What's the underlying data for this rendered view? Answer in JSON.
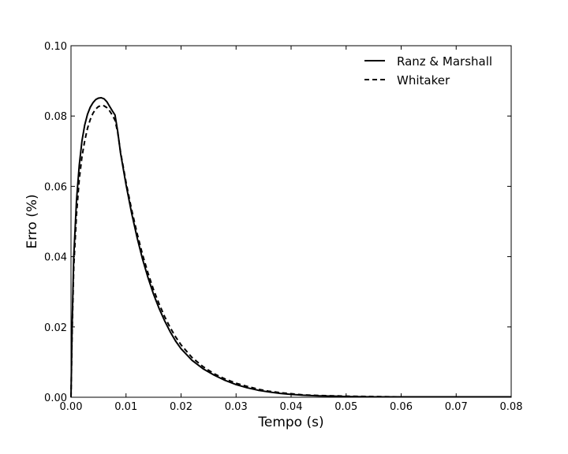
{
  "chart_data": {
    "type": "line",
    "title": "",
    "xlabel": "Tempo (s)",
    "ylabel": "Erro (%)",
    "xlim": [
      0.0,
      0.08
    ],
    "ylim": [
      0.0,
      0.1
    ],
    "xticks": [
      "0.00",
      "0.01",
      "0.02",
      "0.03",
      "0.04",
      "0.05",
      "0.06",
      "0.07",
      "0.08"
    ],
    "yticks": [
      "0.00",
      "0.02",
      "0.04",
      "0.06",
      "0.08",
      "0.10"
    ],
    "grid": false,
    "legend_position": "top-right",
    "series": [
      {
        "name": "Ranz & Marshall",
        "style": "solid",
        "color": "#000000",
        "x": [
          0.0,
          0.0002,
          0.0005,
          0.001,
          0.0015,
          0.002,
          0.0025,
          0.003,
          0.0035,
          0.004,
          0.0045,
          0.005,
          0.0055,
          0.006,
          0.0065,
          0.007,
          0.0075,
          0.008,
          0.0085,
          0.009,
          0.01,
          0.011,
          0.012,
          0.013,
          0.014,
          0.015,
          0.016,
          0.017,
          0.018,
          0.019,
          0.02,
          0.022,
          0.024,
          0.026,
          0.028,
          0.03,
          0.032,
          0.034,
          0.036,
          0.038,
          0.04,
          0.042,
          0.045,
          0.048,
          0.05,
          0.055,
          0.06,
          0.065,
          0.07,
          0.075,
          0.08
        ],
        "y": [
          0.0,
          0.02,
          0.04,
          0.056,
          0.066,
          0.073,
          0.0775,
          0.0805,
          0.0825,
          0.0838,
          0.0847,
          0.0851,
          0.0852,
          0.0849,
          0.0841,
          0.0828,
          0.0815,
          0.0803,
          0.0755,
          0.0695,
          0.0605,
          0.0525,
          0.0455,
          0.0393,
          0.034,
          0.0293,
          0.0253,
          0.0218,
          0.0187,
          0.016,
          0.0138,
          0.0105,
          0.0081,
          0.0063,
          0.0048,
          0.0036,
          0.0027,
          0.002,
          0.0015,
          0.0011,
          0.0008,
          0.0006,
          0.0004,
          0.0003,
          0.0002,
          0.0001,
          0.0001,
          0.0001,
          0.0001,
          0.0001,
          0.0001
        ]
      },
      {
        "name": "Whitaker",
        "style": "dashed",
        "color": "#000000",
        "x": [
          0.0,
          0.0002,
          0.0005,
          0.001,
          0.0015,
          0.002,
          0.0025,
          0.003,
          0.0035,
          0.004,
          0.0045,
          0.005,
          0.0055,
          0.006,
          0.0065,
          0.007,
          0.0075,
          0.008,
          0.0085,
          0.009,
          0.01,
          0.011,
          0.012,
          0.013,
          0.014,
          0.015,
          0.016,
          0.017,
          0.018,
          0.019,
          0.02,
          0.022,
          0.024,
          0.026,
          0.028,
          0.03,
          0.032,
          0.034,
          0.036,
          0.038,
          0.04,
          0.042,
          0.045,
          0.048,
          0.05,
          0.055,
          0.06,
          0.065,
          0.07,
          0.075,
          0.08
        ],
        "y": [
          0.0,
          0.018,
          0.037,
          0.052,
          0.062,
          0.0685,
          0.073,
          0.0765,
          0.079,
          0.0808,
          0.082,
          0.0827,
          0.083,
          0.0829,
          0.0824,
          0.0815,
          0.0803,
          0.0788,
          0.0752,
          0.0698,
          0.0612,
          0.0535,
          0.0467,
          0.0406,
          0.0353,
          0.0306,
          0.0266,
          0.023,
          0.0199,
          0.0172,
          0.0149,
          0.0113,
          0.0087,
          0.0067,
          0.0052,
          0.004,
          0.0031,
          0.0023,
          0.0017,
          0.0013,
          0.001,
          0.0007,
          0.0005,
          0.0004,
          0.0003,
          0.0002,
          0.0001,
          0.0001,
          0.0001,
          0.0001,
          0.0001
        ]
      }
    ]
  }
}
